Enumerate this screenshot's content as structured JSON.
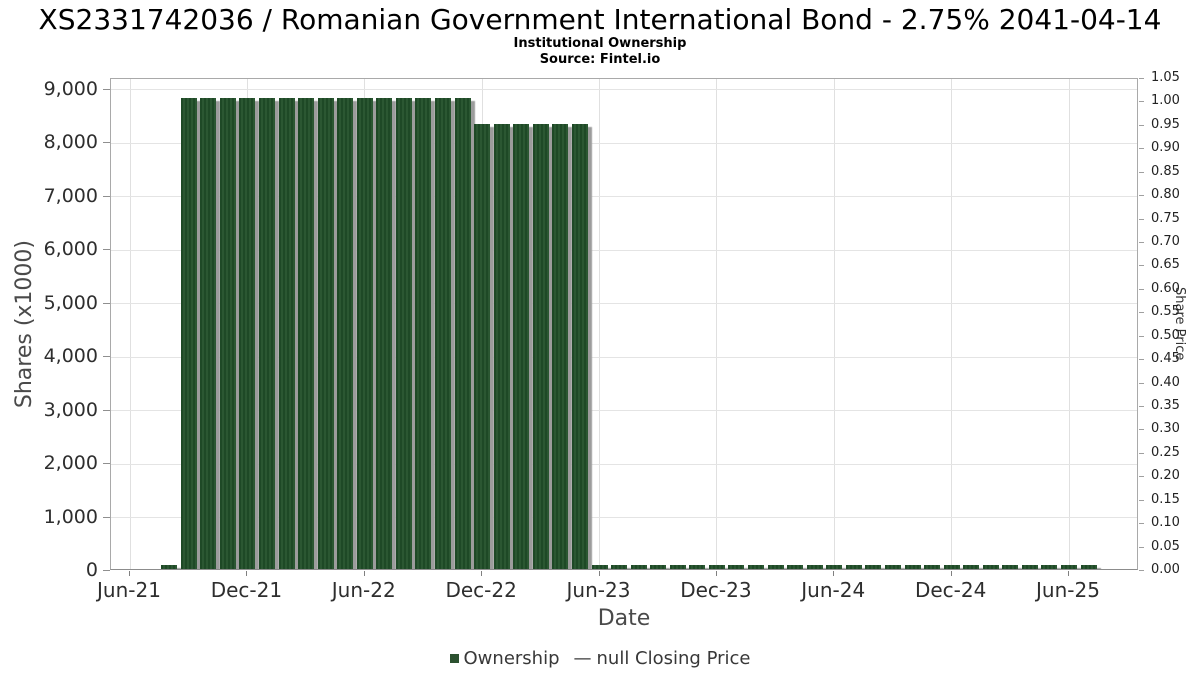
{
  "header": {
    "title": "XS2331742036 / Romanian Government International Bond - 2.75% 2041-04-14",
    "subtitle": "Institutional Ownership",
    "source": "Source: Fintel.io"
  },
  "legend": {
    "ownership_label": "Ownership",
    "ownership_marker_icon": "green-square",
    "closing_price_marker": "—",
    "closing_price_label": "null Closing Price"
  },
  "colors": {
    "bar_green": "#1e4926",
    "bar_stripe_green": "#2b5732",
    "bar_shadow_gray": "#9c9c9c",
    "gridline": "#e2e2e2",
    "frame": "#a9a9a9",
    "tick_text": "#2e2e2e",
    "axis_title_text": "#4a4a4a"
  },
  "chart_data": {
    "type": "bar",
    "title": "XS2331742036 / Romanian Government International Bond - 2.75% 2041-04-14",
    "subtitle": "Institutional Ownership",
    "xlabel": "Date",
    "ylabel_left": "Shares (x1000)",
    "ylabel_right": "Share Price",
    "grid": true,
    "legend_position": "bottom",
    "x_tick_labels": [
      "Jun-21",
      "Dec-21",
      "Jun-22",
      "Dec-22",
      "Jun-23",
      "Dec-23",
      "Jun-24",
      "Dec-24",
      "Jun-25"
    ],
    "x_tick_month_offsets": [
      0,
      6,
      12,
      18,
      24,
      30,
      36,
      42,
      48
    ],
    "left_axis_max": 9200,
    "left_ticks": [
      {
        "label": "0",
        "value": 0
      },
      {
        "label": "1,000",
        "value": 1000
      },
      {
        "label": "2,000",
        "value": 2000
      },
      {
        "label": "3,000",
        "value": 3000
      },
      {
        "label": "4,000",
        "value": 4000
      },
      {
        "label": "5,000",
        "value": 5000
      },
      {
        "label": "6,000",
        "value": 6000
      },
      {
        "label": "7,000",
        "value": 7000
      },
      {
        "label": "8,000",
        "value": 8000
      },
      {
        "label": "9,000",
        "value": 9000
      }
    ],
    "right_axis_max": 1.05,
    "right_ticks": [
      "0.00",
      "0.05",
      "0.10",
      "0.15",
      "0.20",
      "0.25",
      "0.30",
      "0.35",
      "0.40",
      "0.45",
      "0.50",
      "0.55",
      "0.60",
      "0.65",
      "0.70",
      "0.75",
      "0.80",
      "0.85",
      "0.90",
      "0.95",
      "1.00",
      "1.05"
    ],
    "first_bar_month_offset": 2,
    "series": [
      {
        "name": "Ownership",
        "type": "bar",
        "unit": "shares x1000",
        "points": [
          {
            "month": "Aug-21",
            "value": 70
          },
          {
            "month": "Sep-21",
            "value": 8800
          },
          {
            "month": "Oct-21",
            "value": 8800
          },
          {
            "month": "Nov-21",
            "value": 8800
          },
          {
            "month": "Dec-21",
            "value": 8800
          },
          {
            "month": "Jan-22",
            "value": 8800
          },
          {
            "month": "Feb-22",
            "value": 8800
          },
          {
            "month": "Mar-22",
            "value": 8800
          },
          {
            "month": "Apr-22",
            "value": 8800
          },
          {
            "month": "May-22",
            "value": 8800
          },
          {
            "month": "Jun-22",
            "value": 8800
          },
          {
            "month": "Jul-22",
            "value": 8800
          },
          {
            "month": "Aug-22",
            "value": 8800
          },
          {
            "month": "Sep-22",
            "value": 8800
          },
          {
            "month": "Oct-22",
            "value": 8800
          },
          {
            "month": "Nov-22",
            "value": 8800
          },
          {
            "month": "Dec-22",
            "value": 8320
          },
          {
            "month": "Jan-23",
            "value": 8320
          },
          {
            "month": "Feb-23",
            "value": 8320
          },
          {
            "month": "Mar-23",
            "value": 8320
          },
          {
            "month": "Apr-23",
            "value": 8320
          },
          {
            "month": "May-23",
            "value": 8320
          },
          {
            "month": "Jun-23",
            "value": 70
          },
          {
            "month": "Jul-23",
            "value": 70
          },
          {
            "month": "Aug-23",
            "value": 70
          },
          {
            "month": "Sep-23",
            "value": 70
          },
          {
            "month": "Oct-23",
            "value": 70
          },
          {
            "month": "Nov-23",
            "value": 70
          },
          {
            "month": "Dec-23",
            "value": 70
          },
          {
            "month": "Jan-24",
            "value": 70
          },
          {
            "month": "Feb-24",
            "value": 70
          },
          {
            "month": "Mar-24",
            "value": 70
          },
          {
            "month": "Apr-24",
            "value": 70
          },
          {
            "month": "May-24",
            "value": 70
          },
          {
            "month": "Jun-24",
            "value": 70
          },
          {
            "month": "Jul-24",
            "value": 70
          },
          {
            "month": "Aug-24",
            "value": 70
          },
          {
            "month": "Sep-24",
            "value": 70
          },
          {
            "month": "Oct-24",
            "value": 70
          },
          {
            "month": "Nov-24",
            "value": 70
          },
          {
            "month": "Dec-24",
            "value": 70
          },
          {
            "month": "Jan-25",
            "value": 70
          },
          {
            "month": "Feb-25",
            "value": 70
          },
          {
            "month": "Mar-25",
            "value": 70
          },
          {
            "month": "Apr-25",
            "value": 70
          },
          {
            "month": "May-25",
            "value": 70
          },
          {
            "month": "Jun-25",
            "value": 70
          },
          {
            "month": "Jul-25",
            "value": 70
          }
        ]
      },
      {
        "name": "null Closing Price",
        "type": "line",
        "points": []
      }
    ]
  }
}
